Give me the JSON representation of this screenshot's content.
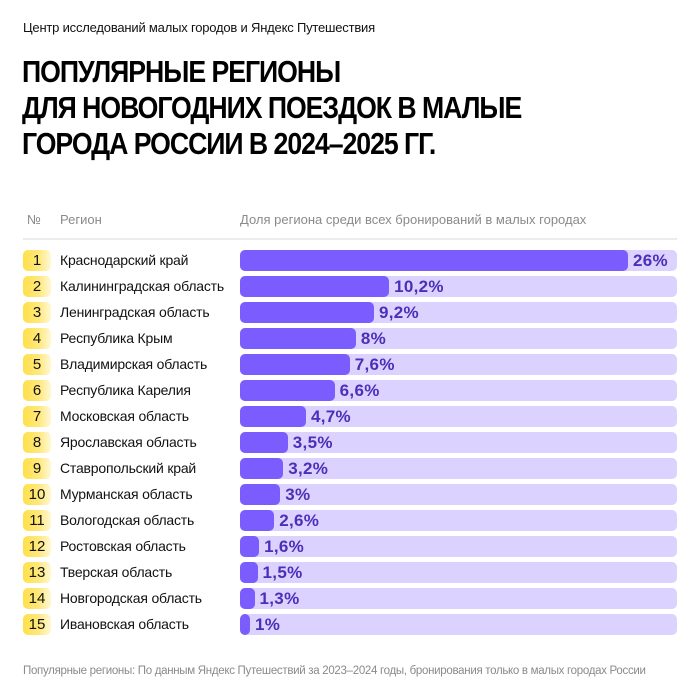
{
  "header": {
    "source": "Центр исследований малых городов и Яндекс Путешествия",
    "title_lines": [
      "ПОПУЛЯРНЫЕ РЕГИОНЫ",
      "ДЛЯ НОВОГОДНИХ ПОЕЗДОК В МАЛЫЕ",
      "ГОРОДА РОССИИ В 2024–2025 ГГ."
    ]
  },
  "table": {
    "col_number": "№",
    "col_region": "Регион",
    "col_share": "Доля региона среди всех бронирований в малых городах"
  },
  "footnote": "Популярные регионы: По данным Яндекс Путешествий за 2023–2024 годы, бронирования только в малых городах России",
  "colors": {
    "bar": "#7b5cff",
    "track": "#dcd2ff",
    "value_text": "#4b2fb8",
    "badge": "#ffe04a"
  },
  "chart_data": {
    "type": "bar",
    "orientation": "horizontal",
    "title": "ПОПУЛЯРНЫЕ РЕГИОНЫ ДЛЯ НОВОГОДНИХ ПОЕЗДОК В МАЛЫЕ ГОРОДА РОССИИ В 2024–2025 ГГ.",
    "xlabel": "Доля региона среди всех бронирований в малых городах",
    "ylabel": "Регион",
    "unit": "%",
    "ranks": [
      "1",
      "2",
      "3",
      "4",
      "5",
      "6",
      "7",
      "8",
      "9",
      "10",
      "11",
      "12",
      "13",
      "14",
      "15"
    ],
    "categories": [
      "Краснодарский край",
      "Калининградская область",
      "Ленинградская область",
      "Республика Крым",
      "Владимирская область",
      "Республика Карелия",
      "Московская область",
      "Ярославская область",
      "Ставропольский край",
      "Мурманская область",
      "Вологодская область",
      "Ростовская область",
      "Тверская область",
      "Новгородская область",
      "Ивановская область"
    ],
    "values": [
      26,
      10.2,
      9.2,
      8,
      7.6,
      6.6,
      4.7,
      3.5,
      3.2,
      3,
      2.6,
      1.6,
      1.5,
      1.3,
      1
    ],
    "labels": [
      "26%",
      "10,2%",
      "9,2%",
      "8%",
      "7,6%",
      "6,6%",
      "4,7%",
      "3,5%",
      "3,2%",
      "3%",
      "2,6%",
      "1,6%",
      "1,5%",
      "1,3%",
      "1%"
    ],
    "xlim": [
      0,
      29
    ]
  }
}
